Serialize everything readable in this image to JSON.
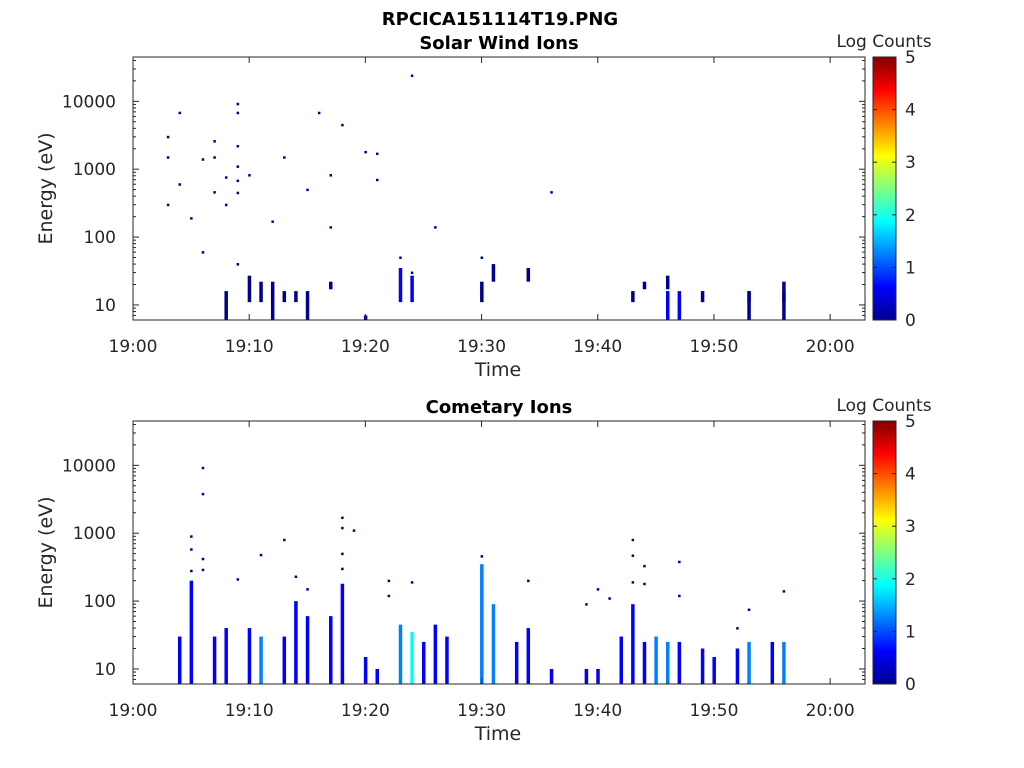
{
  "figure_title": "RPCICA151114T19.PNG",
  "colormap": [
    "#00008f",
    "#0000ff",
    "#0080ff",
    "#00ffff",
    "#80ff80",
    "#ffff00",
    "#ff8000",
    "#ff0000",
    "#800000"
  ],
  "chart_data": [
    {
      "type": "heatmap",
      "title": "Solar Wind Ions",
      "xlabel": "Time",
      "ylabel": "Energy (eV)",
      "y_scale": "log",
      "xlim": [
        "19:00",
        "20:03"
      ],
      "ylim": [
        6,
        45000
      ],
      "x_ticks": [
        "19:00",
        "19:10",
        "19:20",
        "19:30",
        "19:40",
        "19:50",
        "20:00"
      ],
      "y_ticks": [
        "10",
        "100",
        "1000",
        "10000"
      ],
      "colorbar": {
        "label": "Log Counts",
        "range": [
          0,
          5
        ],
        "ticks": [
          "0",
          "1",
          "2",
          "3",
          "4",
          "5"
        ]
      },
      "points": [
        [
          "19:03",
          1500,
          0.2
        ],
        [
          "19:03",
          3000,
          0.2
        ],
        [
          "19:03",
          300,
          0.2
        ],
        [
          "19:04",
          600,
          0.2
        ],
        [
          "19:04",
          6800,
          0.2
        ],
        [
          "19:05",
          190,
          0.2
        ],
        [
          "19:06",
          60,
          0.2
        ],
        [
          "19:06",
          1400,
          0.2
        ],
        [
          "19:07",
          460,
          0.2
        ],
        [
          "19:07",
          1500,
          0.2
        ],
        [
          "19:07",
          2600,
          0.2
        ],
        [
          "19:08",
          760,
          0.2
        ],
        [
          "19:08",
          300,
          0.2
        ],
        [
          "19:09",
          1100,
          0.2
        ],
        [
          "19:09",
          450,
          0.2
        ],
        [
          "19:09",
          680,
          0.2
        ],
        [
          "19:09",
          2200,
          0.2
        ],
        [
          "19:09",
          9200,
          0.2
        ],
        [
          "19:09",
          6800,
          0.2
        ],
        [
          "19:10",
          820,
          0.2
        ],
        [
          "19:09",
          40,
          0.2
        ],
        [
          "19:12",
          170,
          0.2
        ],
        [
          "19:13",
          1500,
          0.2
        ],
        [
          "19:15",
          500,
          0.2
        ],
        [
          "19:16",
          6800,
          0.2
        ],
        [
          "19:17",
          820,
          0.2
        ],
        [
          "19:17",
          140,
          0.2
        ],
        [
          "19:18",
          4500,
          0.2
        ],
        [
          "19:20",
          1800,
          0.2
        ],
        [
          "19:21",
          1700,
          0.2
        ],
        [
          "19:21",
          700,
          0.2
        ],
        [
          "19:24",
          24000,
          0.2
        ],
        [
          "19:26",
          140,
          0.2
        ],
        [
          "19:36",
          460,
          0.2
        ],
        [
          "19:23",
          50,
          0.2
        ],
        [
          "19:24",
          30,
          0.2
        ],
        [
          "19:30",
          50,
          0.2
        ],
        [
          "19:31",
          30,
          0.2
        ]
      ],
      "streaks": [
        [
          "19:08",
          6,
          16,
          0.3
        ],
        [
          "19:10",
          11,
          27,
          0.3
        ],
        [
          "19:11",
          11,
          22,
          0.3
        ],
        [
          "19:12",
          6,
          22,
          0.3
        ],
        [
          "19:13",
          11,
          16,
          0.3
        ],
        [
          "19:14",
          11,
          16,
          0.3
        ],
        [
          "19:15",
          6,
          16,
          0.3
        ],
        [
          "19:17",
          17,
          22,
          0.3
        ],
        [
          "19:20",
          6,
          7,
          0.3
        ],
        [
          "19:23",
          11,
          35,
          0.6
        ],
        [
          "19:24",
          11,
          27,
          0.7
        ],
        [
          "19:30",
          11,
          22,
          0.3
        ],
        [
          "19:31",
          22,
          40,
          0.3
        ],
        [
          "19:34",
          22,
          35,
          0.3
        ],
        [
          "19:43",
          11,
          16,
          0.3
        ],
        [
          "19:44",
          17,
          22,
          0.3
        ],
        [
          "19:46",
          17,
          27,
          0.3
        ],
        [
          "19:46",
          6,
          16,
          0.4
        ],
        [
          "19:47",
          6,
          16,
          0.4
        ],
        [
          "19:49",
          11,
          16,
          0.3
        ],
        [
          "19:53",
          11,
          16,
          0.3
        ],
        [
          "19:53",
          6,
          16,
          0.3
        ],
        [
          "19:56",
          11,
          22,
          0.3
        ],
        [
          "19:56",
          6,
          16,
          0.3
        ]
      ]
    },
    {
      "type": "heatmap",
      "title": "Cometary Ions",
      "xlabel": "Time",
      "ylabel": "Energy (eV)",
      "y_scale": "log",
      "xlim": [
        "19:00",
        "20:03"
      ],
      "ylim": [
        6,
        45000
      ],
      "x_ticks": [
        "19:00",
        "19:10",
        "19:20",
        "19:30",
        "19:40",
        "19:50",
        "20:00"
      ],
      "y_ticks": [
        "10",
        "100",
        "1000",
        "10000"
      ],
      "colorbar": {
        "label": "Log Counts",
        "range": [
          0,
          5
        ],
        "ticks": [
          "0",
          "1",
          "2",
          "3",
          "4",
          "5"
        ]
      },
      "points": [
        [
          "19:06",
          9200,
          0.2
        ],
        [
          "19:06",
          3800,
          0.2
        ],
        [
          "19:05",
          900,
          0.2
        ],
        [
          "19:05",
          580,
          0.2
        ],
        [
          "19:05",
          280,
          0.2
        ],
        [
          "19:06",
          420,
          0.2
        ],
        [
          "19:06",
          290,
          0.2
        ],
        [
          "19:09",
          210,
          0.2
        ],
        [
          "19:11",
          480,
          0.2
        ],
        [
          "19:13",
          800,
          0.2
        ],
        [
          "19:14",
          230,
          0.2
        ],
        [
          "19:15",
          150,
          0.2
        ],
        [
          "19:18",
          1700,
          0.2
        ],
        [
          "19:18",
          1200,
          0.2
        ],
        [
          "19:19",
          1100,
          0.2
        ],
        [
          "19:18",
          500,
          0.2
        ],
        [
          "19:18",
          300,
          0.2
        ],
        [
          "19:22",
          200,
          0.2
        ],
        [
          "19:22",
          120,
          0.2
        ],
        [
          "19:24",
          190,
          0.2
        ],
        [
          "19:30",
          460,
          0.2
        ],
        [
          "19:34",
          200,
          0.2
        ],
        [
          "19:39",
          90,
          0.2
        ],
        [
          "19:40",
          150,
          0.2
        ],
        [
          "19:41",
          110,
          0.2
        ],
        [
          "19:43",
          800,
          0.2
        ],
        [
          "19:43",
          470,
          0.2
        ],
        [
          "19:44",
          330,
          0.2
        ],
        [
          "19:43",
          190,
          0.2
        ],
        [
          "19:44",
          180,
          0.2
        ],
        [
          "19:47",
          380,
          0.2
        ],
        [
          "19:47",
          120,
          0.2
        ],
        [
          "19:53",
          75,
          0.2
        ],
        [
          "19:56",
          140,
          0.2
        ],
        [
          "19:52",
          40,
          0.2
        ]
      ],
      "streaks": [
        [
          "19:04",
          6,
          30,
          0.5
        ],
        [
          "19:05",
          6,
          200,
          0.6
        ],
        [
          "19:07",
          6,
          30,
          0.5
        ],
        [
          "19:08",
          6,
          40,
          0.6
        ],
        [
          "19:10",
          6,
          40,
          0.8
        ],
        [
          "19:11",
          6,
          30,
          1.3
        ],
        [
          "19:13",
          6,
          30,
          0.6
        ],
        [
          "19:14",
          6,
          100,
          0.7
        ],
        [
          "19:15",
          6,
          60,
          0.5
        ],
        [
          "19:17",
          6,
          60,
          0.6
        ],
        [
          "19:18",
          6,
          180,
          0.8
        ],
        [
          "19:20",
          6,
          15,
          0.4
        ],
        [
          "19:21",
          6,
          10,
          0.4
        ],
        [
          "19:23",
          6,
          45,
          1.0
        ],
        [
          "19:24",
          6,
          35,
          1.6
        ],
        [
          "19:25",
          6,
          25,
          0.7
        ],
        [
          "19:26",
          6,
          45,
          0.5
        ],
        [
          "19:27",
          6,
          30,
          0.5
        ],
        [
          "19:30",
          6,
          350,
          1.2
        ],
        [
          "19:31",
          6,
          90,
          1.4
        ],
        [
          "19:33",
          6,
          25,
          0.5
        ],
        [
          "19:34",
          6,
          40,
          0.6
        ],
        [
          "19:36",
          6,
          10,
          0.4
        ],
        [
          "19:39",
          6,
          10,
          0.4
        ],
        [
          "19:40",
          6,
          10,
          0.4
        ],
        [
          "19:42",
          6,
          30,
          0.6
        ],
        [
          "19:43",
          6,
          90,
          0.8
        ],
        [
          "19:44",
          6,
          25,
          0.7
        ],
        [
          "19:45",
          6,
          30,
          1.2
        ],
        [
          "19:46",
          6,
          25,
          1.4
        ],
        [
          "19:47",
          6,
          25,
          0.7
        ],
        [
          "19:49",
          6,
          20,
          0.6
        ],
        [
          "19:50",
          6,
          15,
          0.5
        ],
        [
          "19:52",
          6,
          20,
          0.8
        ],
        [
          "19:53",
          6,
          25,
          1.0
        ],
        [
          "19:55",
          6,
          25,
          0.8
        ],
        [
          "19:56",
          6,
          25,
          1.3
        ]
      ]
    }
  ]
}
